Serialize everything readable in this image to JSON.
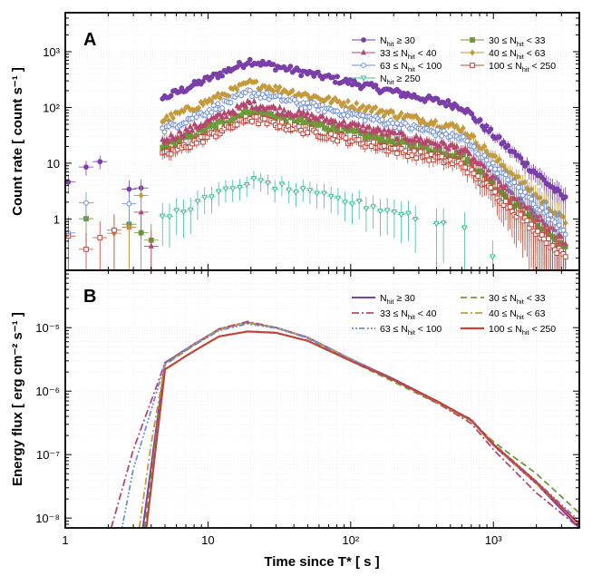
{
  "chart_data": [
    {
      "type": "scatter",
      "panel_label": "A",
      "ylabel": "Count rate [ count s⁻¹ ]",
      "xlabel": "",
      "x_scale": "log",
      "y_scale": "log",
      "xlim": [
        1,
        4000
      ],
      "ylim": [
        0.12,
        5000
      ],
      "yticks": [
        {
          "value": 1,
          "label": "1"
        },
        {
          "value": 10,
          "label": "10"
        },
        {
          "value": 100,
          "label": "10²"
        },
        {
          "value": 1000,
          "label": "10³"
        }
      ],
      "legend_position": "top-right",
      "series": [
        {
          "name": "N_hit ≥ 30",
          "legend_main": "N",
          "legend_sub": "hit",
          "legend_rest": " ≥ 30",
          "color": "#7b3fa8",
          "marker": "circle",
          "peak": 700,
          "scale_late": 1.0
        },
        {
          "name": "30 ≤ N_hit < 33",
          "legend_main": "30 ≤ N",
          "legend_sub": "hit",
          "legend_rest": " < 33",
          "color": "#6e9a3a",
          "marker": "square",
          "peak": 90,
          "scale_late": 0.13
        },
        {
          "name": "33 ≤ N_hit < 40",
          "legend_main": "33 ≤ N",
          "legend_sub": "hit",
          "legend_rest": " < 40",
          "color": "#b5476e",
          "marker": "triangle",
          "peak": 120,
          "scale_late": 0.17
        },
        {
          "name": "40 ≤ N_hit < 63",
          "legend_main": "40 ≤ N",
          "legend_sub": "hit",
          "legend_rest": " < 63",
          "color": "#c49a3c",
          "marker": "diamond",
          "peak": 280,
          "scale_late": 0.4
        },
        {
          "name": "63 ≤ N_hit < 100",
          "legend_main": "63 ≤ N",
          "legend_sub": "hit",
          "legend_rest": " < 100",
          "color": "#6f8fd8",
          "marker": "circle-open",
          "peak": 190,
          "scale_late": 0.26
        },
        {
          "name": "100 ≤ N_hit < 250",
          "legend_main": "100 ≤ N",
          "legend_sub": "hit",
          "legend_rest": " < 250",
          "color": "#c0453a",
          "marker": "square-open",
          "peak": 65,
          "scale_late": 0.09
        },
        {
          "name": "N_hit ≥ 250",
          "legend_main": "N",
          "legend_sub": "hit",
          "legend_rest": " ≥ 250",
          "color": "#3fbf9a",
          "marker": "triangle-down",
          "peak": 5,
          "scale_late": 0.007
        }
      ]
    },
    {
      "type": "line",
      "panel_label": "B",
      "ylabel": "Energy flux [ erg cm⁻² s⁻¹ ]",
      "xlabel": "Time since T* [ s ]",
      "x_scale": "log",
      "y_scale": "log",
      "xlim": [
        1,
        4000
      ],
      "ylim": [
        7e-09,
        8e-05
      ],
      "xticks": [
        {
          "value": 1,
          "label": "1"
        },
        {
          "value": 10,
          "label": "10"
        },
        {
          "value": 100,
          "label": "10²"
        },
        {
          "value": 1000,
          "label": "10³"
        }
      ],
      "yticks": [
        {
          "value": 1e-08,
          "label": "10⁻⁸"
        },
        {
          "value": 1e-07,
          "label": "10⁻⁷"
        },
        {
          "value": 1e-06,
          "label": "10⁻⁶"
        },
        {
          "value": 1e-05,
          "label": "10⁻⁵"
        }
      ],
      "legend_position": "top-right",
      "series": [
        {
          "name": "N_hit ≥ 30",
          "legend_main": "N",
          "legend_sub": "hit",
          "legend_rest": " ≥ 30",
          "color": "#7b3fa8",
          "dash": "",
          "width": 2,
          "x": [
            3.5,
            5,
            8,
            12,
            19,
            30,
            50,
            100,
            200,
            400,
            700,
            1000,
            2000,
            4000
          ],
          "y": [
            7e-09,
            2.8e-06,
            5.5e-06,
            9.5e-06,
            1.2e-05,
            1e-05,
            7e-06,
            3.2e-06,
            1.55e-06,
            7e-07,
            3.5e-07,
            1.4e-07,
            3.5e-08,
            7e-09
          ]
        },
        {
          "name": "30 ≤ N_hit < 33",
          "legend_main": "30 ≤ N",
          "legend_sub": "hit",
          "legend_rest": " < 33",
          "color": "#6e9a3a",
          "dash": "7,4",
          "width": 1.8,
          "x": [
            3.6,
            5,
            8,
            12,
            19,
            30,
            50,
            100,
            200,
            400,
            700,
            1000,
            2000,
            4000
          ],
          "y": [
            7e-09,
            2.6e-06,
            5.3e-06,
            9.3e-06,
            1.2e-05,
            1e-05,
            6.8e-06,
            3e-06,
            1.4e-06,
            6.5e-07,
            3.4e-07,
            1.6e-07,
            5e-08,
            1.2e-08
          ]
        },
        {
          "name": "33 ≤ N_hit < 40",
          "legend_main": "33 ≤ N",
          "legend_sub": "hit",
          "legend_rest": " < 40",
          "color": "#b5476e",
          "dash": "8,3,2,3",
          "width": 1.8,
          "x": [
            2.1,
            3,
            4,
            5,
            8,
            12,
            19,
            30,
            50,
            100,
            200,
            400,
            700,
            1000,
            2000,
            4000
          ],
          "y": [
            7e-09,
            1.2e-07,
            7e-07,
            2.8e-06,
            5.5e-06,
            9.6e-06,
            1.25e-05,
            1e-05,
            7e-06,
            3.2e-06,
            1.5e-06,
            6.6e-07,
            3.1e-07,
            1.2e-07,
            2.5e-08,
            7e-09
          ]
        },
        {
          "name": "40 ≤ N_hit < 63",
          "legend_main": "40 ≤ N",
          "legend_sub": "hit",
          "legend_rest": " < 63",
          "color": "#c49a3c",
          "dash": "8,3,2,3",
          "width": 1.8,
          "x": [
            3.3,
            4,
            5,
            8,
            12,
            19,
            30,
            50,
            100,
            200,
            400,
            700,
            1000,
            2000,
            4000
          ],
          "y": [
            7e-09,
            1.5e-07,
            2.7e-06,
            5.4e-06,
            9.4e-06,
            1.2e-05,
            1e-05,
            7e-06,
            3.2e-06,
            1.5e-06,
            6.8e-07,
            3.4e-07,
            1.4e-07,
            3.5e-08,
            8e-09
          ]
        },
        {
          "name": "63 ≤ N_hit < 100",
          "legend_main": "63 ≤ N",
          "legend_sub": "hit",
          "legend_rest": " < 100",
          "color": "#6f8fd8",
          "dash": "2,2,2,2,6,3",
          "width": 1.8,
          "x": [
            2.5,
            3,
            4,
            5,
            8,
            12,
            19,
            30,
            50,
            100,
            200,
            400,
            700,
            1000,
            2000,
            4000
          ],
          "y": [
            7e-09,
            6e-08,
            5e-07,
            2.7e-06,
            5.3e-06,
            9e-06,
            1.15e-05,
            9.8e-06,
            6.9e-06,
            3.2e-06,
            1.5e-06,
            7e-07,
            3.6e-07,
            1.5e-07,
            3.8e-08,
            9e-09
          ]
        },
        {
          "name": "100 ≤ N_hit < 250",
          "legend_main": "100 ≤ N",
          "legend_sub": "hit",
          "legend_rest": " < 250",
          "color": "#c0453a",
          "dash": "",
          "width": 2.2,
          "x": [
            3.7,
            5,
            8,
            12,
            19,
            30,
            50,
            100,
            200,
            400,
            700,
            1000,
            2000,
            4000
          ],
          "y": [
            7e-09,
            2.2e-06,
            4.3e-06,
            7.3e-06,
            8.7e-06,
            8.3e-06,
            6.2e-06,
            3e-06,
            1.5e-06,
            7e-07,
            3.5e-07,
            1.45e-07,
            3.7e-08,
            8e-09
          ]
        }
      ]
    }
  ]
}
